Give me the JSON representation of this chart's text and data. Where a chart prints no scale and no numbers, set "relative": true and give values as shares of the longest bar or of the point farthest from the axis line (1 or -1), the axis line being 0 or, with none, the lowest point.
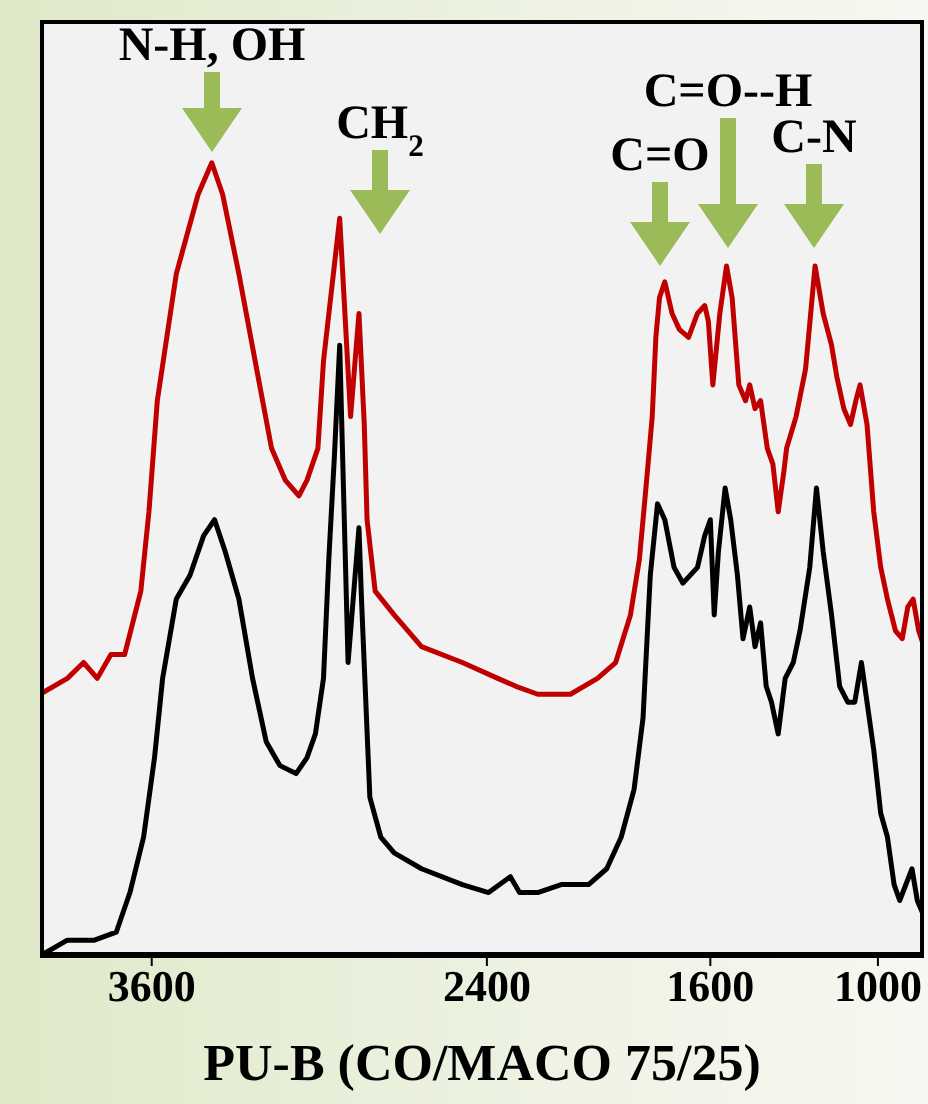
{
  "chart_data": {
    "type": "line",
    "relative": true,
    "xlabel": "PU-B (CO/MACO 75/25)",
    "xlim": [
      4000,
      835
    ],
    "xticks": [
      3600,
      2400,
      1600,
      1000
    ],
    "grid": false,
    "marker": "none",
    "line_style": "solid",
    "series": [
      {
        "color": "#c00000",
        "x": [
          4000,
          3902,
          3844,
          3795,
          3746,
          3697,
          3668,
          3639,
          3610,
          3580,
          3512,
          3434,
          3385,
          3346,
          3288,
          3219,
          3171,
          3122,
          3073,
          3044,
          3005,
          2985,
          2927,
          2888,
          2858,
          2839,
          2829,
          2800,
          2732,
          2634,
          2488,
          2361,
          2296,
          2218,
          2101,
          2004,
          1939,
          1886,
          1854,
          1828,
          1808,
          1795,
          1782,
          1763,
          1737,
          1711,
          1678,
          1646,
          1620,
          1607,
          1591,
          1566,
          1542,
          1522,
          1498,
          1474,
          1459,
          1440,
          1420,
          1396,
          1376,
          1357,
          1337,
          1327,
          1293,
          1259,
          1225,
          1196,
          1166,
          1147,
          1122,
          1098,
          1079,
          1064,
          1039,
          1015,
          990,
          966,
          937,
          913,
          893,
          874,
          854,
          835
        ],
        "values": [
          0.33,
          0.35,
          0.37,
          0.35,
          0.38,
          0.38,
          0.42,
          0.46,
          0.56,
          0.7,
          0.86,
          0.96,
          1,
          0.96,
          0.86,
          0.73,
          0.64,
          0.6,
          0.58,
          0.6,
          0.64,
          0.75,
          0.93,
          0.68,
          0.81,
          0.67,
          0.55,
          0.46,
          0.43,
          0.39,
          0.37,
          0.35,
          0.34,
          0.33,
          0.33,
          0.35,
          0.37,
          0.43,
          0.5,
          0.6,
          0.68,
          0.78,
          0.83,
          0.85,
          0.81,
          0.79,
          0.78,
          0.81,
          0.82,
          0.8,
          0.72,
          0.81,
          0.87,
          0.83,
          0.72,
          0.7,
          0.72,
          0.69,
          0.7,
          0.64,
          0.62,
          0.56,
          0.61,
          0.64,
          0.68,
          0.74,
          0.87,
          0.81,
          0.77,
          0.73,
          0.69,
          0.67,
          0.7,
          0.72,
          0.67,
          0.56,
          0.49,
          0.45,
          0.41,
          0.4,
          0.44,
          0.45,
          0.41,
          0.39
        ]
      },
      {
        "color": "#000000",
        "x": [
          4000,
          3902,
          3805,
          3727,
          3678,
          3629,
          3590,
          3561,
          3512,
          3463,
          3414,
          3375,
          3337,
          3288,
          3239,
          3190,
          3141,
          3083,
          3044,
          3014,
          2985,
          2966,
          2946,
          2927,
          2897,
          2858,
          2849,
          2819,
          2780,
          2732,
          2634,
          2488,
          2394,
          2316,
          2283,
          2218,
          2134,
          2036,
          1971,
          1919,
          1873,
          1841,
          1815,
          1789,
          1763,
          1730,
          1698,
          1646,
          1620,
          1600,
          1586,
          1571,
          1547,
          1527,
          1503,
          1483,
          1459,
          1440,
          1420,
          1400,
          1381,
          1357,
          1332,
          1303,
          1279,
          1244,
          1220,
          1196,
          1166,
          1137,
          1108,
          1083,
          1059,
          1039,
          1015,
          990,
          966,
          942,
          922,
          878,
          859,
          835
        ],
        "values": [
          0.0,
          0.02,
          0.02,
          0.03,
          0.08,
          0.15,
          0.25,
          0.35,
          0.45,
          0.48,
          0.53,
          0.55,
          0.51,
          0.45,
          0.35,
          0.27,
          0.24,
          0.23,
          0.25,
          0.28,
          0.35,
          0.5,
          0.63,
          0.77,
          0.37,
          0.54,
          0.45,
          0.2,
          0.15,
          0.13,
          0.11,
          0.09,
          0.08,
          0.1,
          0.08,
          0.08,
          0.09,
          0.09,
          0.11,
          0.15,
          0.21,
          0.3,
          0.48,
          0.57,
          0.55,
          0.49,
          0.47,
          0.49,
          0.53,
          0.55,
          0.43,
          0.51,
          0.59,
          0.55,
          0.48,
          0.4,
          0.44,
          0.39,
          0.42,
          0.34,
          0.32,
          0.28,
          0.35,
          0.37,
          0.41,
          0.49,
          0.59,
          0.51,
          0.43,
          0.34,
          0.32,
          0.32,
          0.37,
          0.32,
          0.26,
          0.18,
          0.15,
          0.09,
          0.07,
          0.11,
          0.07,
          0.05
        ]
      }
    ],
    "annotations": [
      "N-H, OH",
      "CH$_{2}$",
      "C=O",
      "C=O--H",
      "C-N"
    ]
  }
}
